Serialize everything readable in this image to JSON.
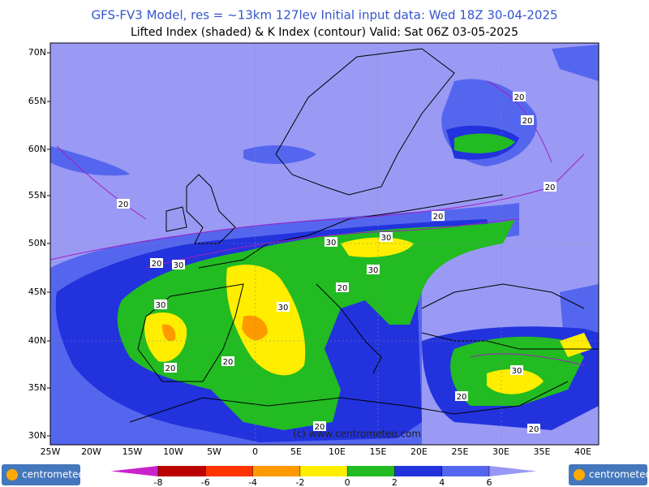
{
  "header": {
    "title": "GFS-FV3 Model, res = ~13km 127lev    Initial input data: Wed 18Z 30-04-2025",
    "subtitle": "Lifted Index (shaded) & K Index (contour) Valid: Sat 06Z 03-05-2025"
  },
  "map": {
    "lat_labels": [
      "70N",
      "65N",
      "60N",
      "55N",
      "50N",
      "45N",
      "40N",
      "35N",
      "30N"
    ],
    "lon_labels": [
      "25W",
      "20W",
      "15W",
      "10W",
      "5W",
      "0",
      "5E",
      "10E",
      "15E",
      "20E",
      "25E",
      "30E",
      "35E",
      "40E"
    ],
    "contour_labels": [
      20,
      20,
      20,
      20,
      20,
      20,
      30,
      30,
      30,
      30,
      20,
      30,
      30,
      20,
      20,
      30,
      20,
      20,
      20
    ],
    "watermark": "(c) www.centrometeo.com"
  },
  "colorbar": {
    "ticks": [
      -8,
      -6,
      -4,
      -2,
      0,
      2,
      4,
      6
    ],
    "colors": [
      "#cc22cc",
      "#bb0000",
      "#ff3300",
      "#ff9900",
      "#ffee00",
      "#22bb22",
      "#2233dd",
      "#5566ee",
      "#9999f5"
    ]
  },
  "logos": {
    "left": "centrometeo",
    "right": "centrometeo"
  }
}
